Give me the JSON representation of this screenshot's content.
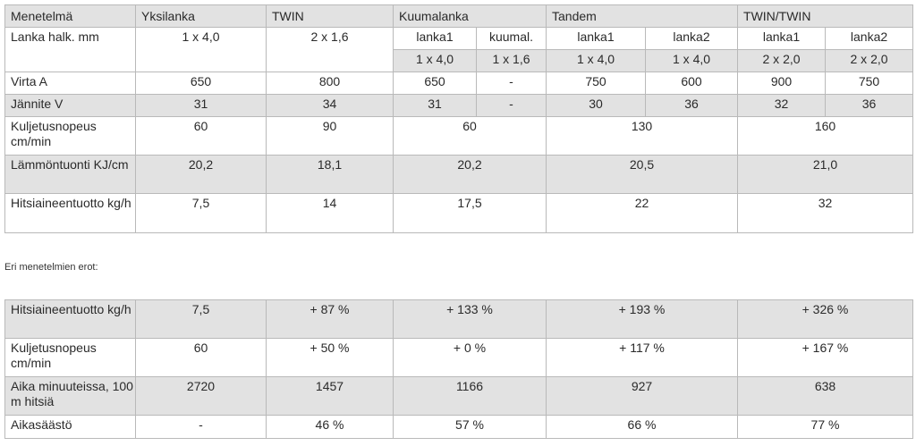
{
  "table1": {
    "header": {
      "method_label": "Menetelmä",
      "yksilanka": "Yksilanka",
      "twin": "TWIN",
      "kuumalanka": "Kuumalanka",
      "tandem": "Tandem",
      "twintwin": "TWIN/TWIN"
    },
    "wire": {
      "label": "Lanka halk. mm",
      "yksilanka": "1 x 4,0",
      "twin": "2 x 1,6",
      "sub": [
        "lanka1",
        "kuumal.",
        "lanka1",
        "lanka2",
        "lanka1",
        "lanka2"
      ],
      "sizes": [
        "1 x 4,0",
        "1 x 1,6",
        "1 x 4,0",
        "1 x 4,0",
        "2 x 2,0",
        "2 x 2,0"
      ]
    },
    "current": {
      "label": "Virta A",
      "values": [
        "650",
        "800",
        "650",
        "-",
        "750",
        "600",
        "900",
        "750"
      ]
    },
    "voltage": {
      "label": "Jännite V",
      "values": [
        "31",
        "34",
        "31",
        "-",
        "30",
        "36",
        "32",
        "36"
      ]
    },
    "speed": {
      "label": "Kuljetusnopeus cm/min",
      "values": [
        "60",
        "90",
        "60",
        "130",
        "160"
      ]
    },
    "heat": {
      "label": "Lämmöntuonti KJ/cm",
      "values": [
        "20,2",
        "18,1",
        "20,2",
        "20,5",
        "21,0"
      ]
    },
    "deposit": {
      "label": "Hitsiaineentuotto kg/h",
      "values": [
        "7,5",
        "14",
        "17,5",
        "22",
        "32"
      ]
    }
  },
  "note": "Eri menetelmien erot:",
  "table2": {
    "rows": [
      {
        "label": "Hitsiaineentuotto kg/h",
        "values": [
          "7,5",
          "+ 87 %",
          "+ 133 %",
          "+ 193 %",
          "+ 326 %"
        ]
      },
      {
        "label": "Kuljetusnopeus cm/min",
        "values": [
          "60",
          "+ 50 %",
          "+ 0 %",
          "+ 117 %",
          "+ 167 %"
        ]
      },
      {
        "label": "Aika minuuteissa, 100 m hitsiä",
        "values": [
          "2720",
          "1457",
          "1166",
          "927",
          "638"
        ]
      },
      {
        "label": "Aikasäästö",
        "values": [
          "-",
          "46 %",
          "57 %",
          "66 %",
          "77 %"
        ]
      }
    ]
  }
}
